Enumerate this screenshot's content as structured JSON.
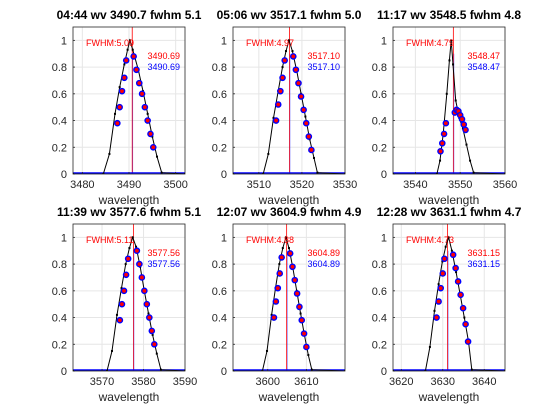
{
  "chart_data": [
    {
      "type": "line",
      "title": "04:44 wv   3490.7   fwhm  5.1",
      "xlabel": "wavelength",
      "ylabel": "",
      "xlim": [
        3478,
        3502
      ],
      "ylim": [
        0,
        1.1
      ],
      "xticks": [
        3480,
        3490,
        3500
      ],
      "yticks": [
        0,
        0.2,
        0.4,
        0.6,
        0.8,
        1
      ],
      "grid": true,
      "fwhm_label": "FWHM:5.09",
      "value_red": "3490.69",
      "value_blue": "3490.69",
      "center_red": 3490.69,
      "center_blue": 3490.69,
      "curve": {
        "x": [
          3478,
          3484.5,
          3485.8,
          3487.0,
          3488.0,
          3489.0,
          3489.7,
          3490.2,
          3490.8,
          3492.0,
          3493.0,
          3494.0,
          3495.0,
          3496.0,
          3497.0,
          3502
        ],
        "y": [
          0,
          0,
          0.15,
          0.45,
          0.65,
          0.82,
          0.93,
          1.0,
          0.93,
          0.78,
          0.62,
          0.45,
          0.28,
          0.13,
          0.01,
          0
        ]
      },
      "points": {
        "x": [
          3487.5,
          3488.0,
          3488.5,
          3489.0,
          3489.4,
          3491.0,
          3491.6,
          3492.2,
          3492.8,
          3493.4,
          3494.0,
          3494.6,
          3495.2
        ],
        "y": [
          0.38,
          0.5,
          0.62,
          0.72,
          0.85,
          0.88,
          0.78,
          0.68,
          0.6,
          0.5,
          0.4,
          0.3,
          0.2
        ]
      }
    },
    {
      "type": "line",
      "title": "05:06 wv   3517.1   fwhm  5.0",
      "xlabel": "wavelength",
      "ylabel": "",
      "xlim": [
        3504,
        3530
      ],
      "ylim": [
        0,
        1.1
      ],
      "xticks": [
        3510,
        3520,
        3530
      ],
      "yticks": [
        0,
        0.2,
        0.4,
        0.6,
        0.8,
        1
      ],
      "grid": true,
      "fwhm_label": "FWHM:4.97",
      "value_red": "3517.10",
      "value_blue": "3517.10",
      "center_red": 3517.1,
      "center_blue": 3517.1,
      "curve": {
        "x": [
          3504,
          3511.0,
          3512.2,
          3513.4,
          3514.5,
          3515.5,
          3516.3,
          3517.0,
          3517.8,
          3518.8,
          3519.8,
          3520.8,
          3521.8,
          3522.8,
          3523.6,
          3530
        ],
        "y": [
          0,
          0,
          0.15,
          0.42,
          0.62,
          0.8,
          0.92,
          1.0,
          0.92,
          0.77,
          0.6,
          0.43,
          0.26,
          0.12,
          0.01,
          0
        ]
      },
      "points": {
        "x": [
          3514.0,
          3514.5,
          3515.0,
          3515.5,
          3516.0,
          3518.0,
          3518.6,
          3519.2,
          3519.8,
          3520.4,
          3521.0,
          3521.6,
          3522.2
        ],
        "y": [
          0.4,
          0.52,
          0.62,
          0.72,
          0.85,
          0.88,
          0.78,
          0.68,
          0.58,
          0.48,
          0.38,
          0.28,
          0.18
        ]
      }
    },
    {
      "type": "line",
      "title": "11:17 wv   3548.5   fwhm  4.8",
      "xlabel": "wavelength",
      "ylabel": "",
      "xlim": [
        3535,
        3560
      ],
      "ylim": [
        0,
        1.1
      ],
      "xticks": [
        3540,
        3550,
        3560
      ],
      "yticks": [
        0,
        0.2,
        0.4,
        0.6,
        0.8,
        1
      ],
      "grid": true,
      "fwhm_label": "FWHM:4.79",
      "value_red": "3548.47",
      "value_blue": "3548.47",
      "center_red": 3548.47,
      "center_blue": 3548.47,
      "curve": {
        "x": [
          3535,
          3544.8,
          3545.5,
          3546.2,
          3547.0,
          3547.6,
          3548.0,
          3548.4,
          3549.0,
          3549.8,
          3550.6,
          3551.4,
          3552.2,
          3553.0,
          3560
        ],
        "y": [
          0,
          0,
          0.1,
          0.3,
          0.6,
          0.85,
          1.0,
          0.82,
          0.55,
          0.42,
          0.34,
          0.22,
          0.1,
          0.01,
          0
        ]
      },
      "points": {
        "x": [
          3545.6,
          3546.0,
          3546.4,
          3546.8,
          3548.8,
          3549.2,
          3549.6,
          3550.0,
          3550.4,
          3550.8,
          3551.2
        ],
        "y": [
          0.17,
          0.23,
          0.3,
          0.38,
          0.46,
          0.48,
          0.47,
          0.44,
          0.41,
          0.37,
          0.33
        ]
      }
    },
    {
      "type": "line",
      "title": "11:39 wv   3577.6   fwhm  5.1",
      "xlabel": "wavelength",
      "ylabel": "",
      "xlim": [
        3563,
        3590
      ],
      "ylim": [
        0,
        1.1
      ],
      "xticks": [
        3570,
        3580,
        3590
      ],
      "yticks": [
        0,
        0.2,
        0.4,
        0.6,
        0.8,
        1
      ],
      "grid": true,
      "fwhm_label": "FWHM:5.11",
      "value_red": "3577.56",
      "value_blue": "3577.56",
      "center_red": 3577.56,
      "center_blue": 3577.56,
      "curve": {
        "x": [
          3563,
          3571.2,
          3572.4,
          3573.6,
          3574.7,
          3575.7,
          3576.6,
          3577.4,
          3578.2,
          3579.2,
          3580.2,
          3581.2,
          3582.2,
          3583.2,
          3584.2,
          3590
        ],
        "y": [
          0,
          0,
          0.15,
          0.42,
          0.62,
          0.8,
          0.92,
          1.0,
          0.93,
          0.78,
          0.6,
          0.43,
          0.27,
          0.13,
          0.01,
          0
        ]
      },
      "points": {
        "x": [
          3574.3,
          3574.8,
          3575.3,
          3575.8,
          3576.3,
          3578.4,
          3579.0,
          3579.6,
          3580.2,
          3580.8,
          3581.4,
          3582.0,
          3582.6
        ],
        "y": [
          0.38,
          0.5,
          0.6,
          0.72,
          0.84,
          0.9,
          0.8,
          0.7,
          0.6,
          0.5,
          0.4,
          0.3,
          0.2
        ]
      }
    },
    {
      "type": "line",
      "title": "12:07 wv   3604.9   fwhm  4.9",
      "xlabel": "wavelength",
      "ylabel": "",
      "xlim": [
        3591,
        3620
      ],
      "ylim": [
        0,
        1.1
      ],
      "xticks": [
        3600,
        3610
      ],
      "yticks": [
        0,
        0.2,
        0.4,
        0.6,
        0.8,
        1
      ],
      "grid": true,
      "fwhm_label": "FWHM:4.88",
      "value_red": "3604.89",
      "value_blue": "3604.89",
      "center_red": 3604.89,
      "center_blue": 3604.89,
      "curve": {
        "x": [
          3591,
          3598.6,
          3599.8,
          3601.0,
          3602.0,
          3603.0,
          3603.9,
          3604.7,
          3605.5,
          3606.5,
          3607.5,
          3608.5,
          3609.5,
          3610.5,
          3611.4,
          3620
        ],
        "y": [
          0,
          0,
          0.15,
          0.42,
          0.62,
          0.8,
          0.92,
          1.0,
          0.92,
          0.77,
          0.6,
          0.43,
          0.27,
          0.12,
          0.01,
          0
        ]
      },
      "points": {
        "x": [
          3601.6,
          3602.1,
          3602.6,
          3603.1,
          3603.6,
          3605.8,
          3606.4,
          3607.0,
          3607.6,
          3608.2,
          3608.8,
          3609.4,
          3610.0
        ],
        "y": [
          0.4,
          0.52,
          0.62,
          0.73,
          0.85,
          0.88,
          0.78,
          0.68,
          0.58,
          0.48,
          0.38,
          0.28,
          0.18
        ]
      }
    },
    {
      "type": "line",
      "title": "12:28 wv   3631.1   fwhm  4.7",
      "xlabel": "wavelength",
      "ylabel": "",
      "xlim": [
        3618,
        3645
      ],
      "ylim": [
        0,
        1.1
      ],
      "xticks": [
        3620,
        3630,
        3640
      ],
      "yticks": [
        0,
        0.2,
        0.4,
        0.6,
        0.8,
        1
      ],
      "grid": true,
      "fwhm_label": "FWHM:4.73",
      "value_red": "3631.15",
      "value_blue": "3631.15",
      "center_red": 3631.15,
      "center_blue": 3631.15,
      "curve": {
        "x": [
          3618,
          3625.8,
          3626.9,
          3628.0,
          3629.0,
          3629.9,
          3630.7,
          3631.4,
          3632.2,
          3633.2,
          3634.2,
          3635.2,
          3636.2,
          3637.0,
          3645
        ],
        "y": [
          0,
          0,
          0.18,
          0.45,
          0.65,
          0.82,
          0.93,
          1.0,
          0.9,
          0.74,
          0.57,
          0.4,
          0.22,
          0.01,
          0
        ]
      },
      "points": {
        "x": [
          3628.5,
          3629.0,
          3629.5,
          3630.0,
          3630.4,
          3632.5,
          3633.1,
          3633.7,
          3634.3,
          3634.9,
          3635.5,
          3636.1
        ],
        "y": [
          0.4,
          0.52,
          0.62,
          0.73,
          0.84,
          0.87,
          0.77,
          0.67,
          0.57,
          0.47,
          0.35,
          0.22
        ]
      }
    }
  ],
  "colors": {
    "curve": "#000000",
    "points_fill": "#ff0000",
    "points_edge": "#0000ff",
    "baseline": "#0000ff",
    "center_red": "#ff0000",
    "center_blue": "#0000ff",
    "fwhm_text": "#ff0000",
    "value_red_text": "#ff0000",
    "value_blue_text": "#0000ff",
    "grid": "#e6e6e6",
    "axes": "#262626"
  }
}
